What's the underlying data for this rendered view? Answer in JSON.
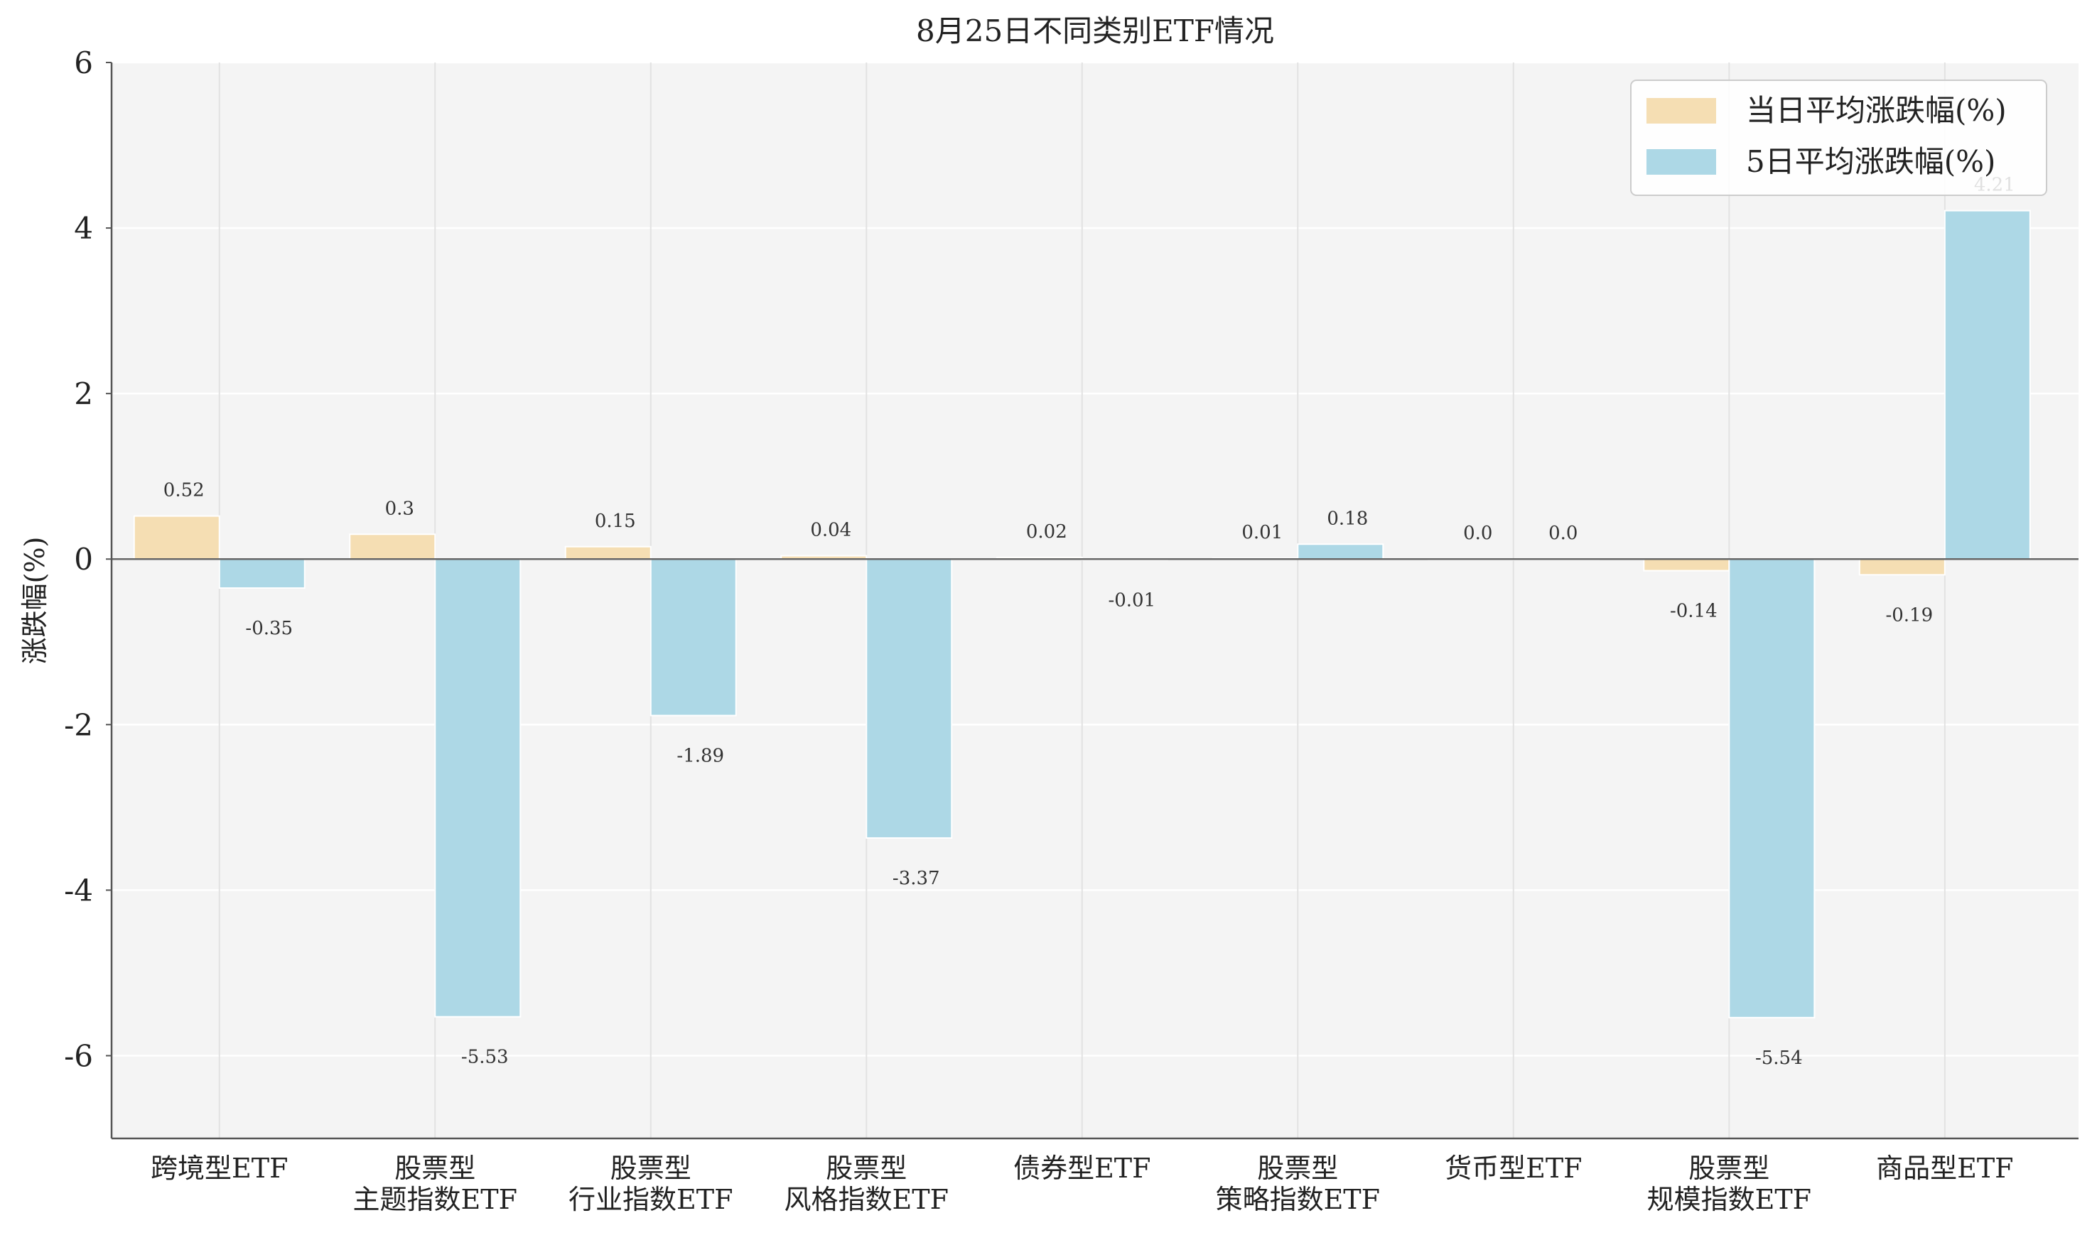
{
  "chart_data": {
    "type": "bar",
    "title": "8月25日不同类别ETF情况",
    "ylabel": "涨跌幅(%)",
    "xlabel": "",
    "ylim": [
      -7,
      6
    ],
    "yticks": [
      6,
      4,
      2,
      0,
      -2,
      -4,
      -6
    ],
    "grid": true,
    "legend_position": "top-right",
    "categories": [
      [
        "跨境型ETF"
      ],
      [
        "股票型",
        "主题指数ETF"
      ],
      [
        "股票型",
        "行业指数ETF"
      ],
      [
        "股票型",
        "风格指数ETF"
      ],
      [
        "债券型ETF"
      ],
      [
        "股票型",
        "策略指数ETF"
      ],
      [
        "货币型ETF"
      ],
      [
        "股票型",
        "规模指数ETF"
      ],
      [
        "商品型ETF"
      ]
    ],
    "series": [
      {
        "name": "当日平均涨跌幅(%)",
        "color": "#f5deb3",
        "values": [
          0.52,
          0.3,
          0.15,
          0.04,
          0.02,
          0.01,
          0.0,
          -0.14,
          -0.19
        ],
        "labels": [
          "0.52",
          "0.3",
          "0.15",
          "0.04",
          "0.02",
          "0.01",
          "0.0",
          "-0.14",
          "-0.19"
        ]
      },
      {
        "name": "5日平均涨跌幅(%)",
        "color": "#add8e6",
        "values": [
          -0.35,
          -5.53,
          -1.89,
          -3.37,
          -0.01,
          0.18,
          0.0,
          -5.54,
          4.21
        ],
        "labels": [
          "-0.35",
          "-5.53",
          "-1.89",
          "-3.37",
          "-0.01",
          "0.18",
          "0.0",
          "-5.54",
          "4.21"
        ]
      }
    ]
  }
}
